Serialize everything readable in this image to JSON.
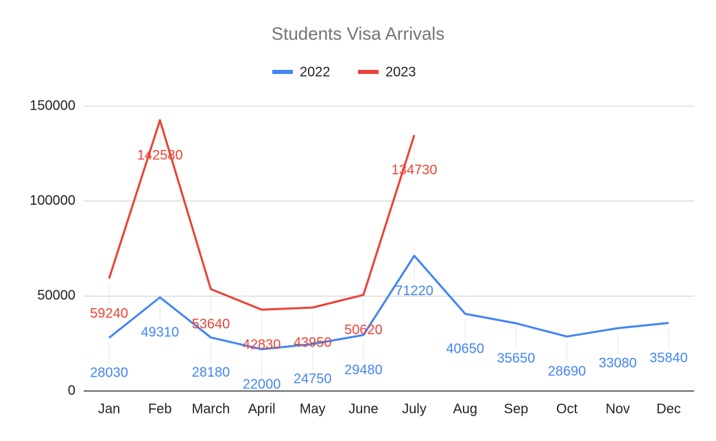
{
  "chart_data": {
    "type": "line",
    "title": "Students Visa Arrivals",
    "categories": [
      "Jan",
      "Feb",
      "March",
      "April",
      "May",
      "June",
      "July",
      "Aug",
      "Sep",
      "Oct",
      "Nov",
      "Dec"
    ],
    "series": [
      {
        "name": "2022",
        "color": "#4285f4",
        "values": [
          28030,
          49310,
          28180,
          22000,
          24750,
          29480,
          71220,
          40650,
          35650,
          28690,
          33080,
          35840
        ]
      },
      {
        "name": "2023",
        "color": "#ea4335",
        "values": [
          59240,
          142580,
          53640,
          42830,
          43950,
          50620,
          134730,
          null,
          null,
          null,
          null,
          null
        ]
      }
    ],
    "ylim": [
      0,
      150000
    ],
    "yticks": [
      0,
      50000,
      100000,
      150000
    ],
    "grid": true,
    "legend": "top",
    "data_labels": true
  }
}
